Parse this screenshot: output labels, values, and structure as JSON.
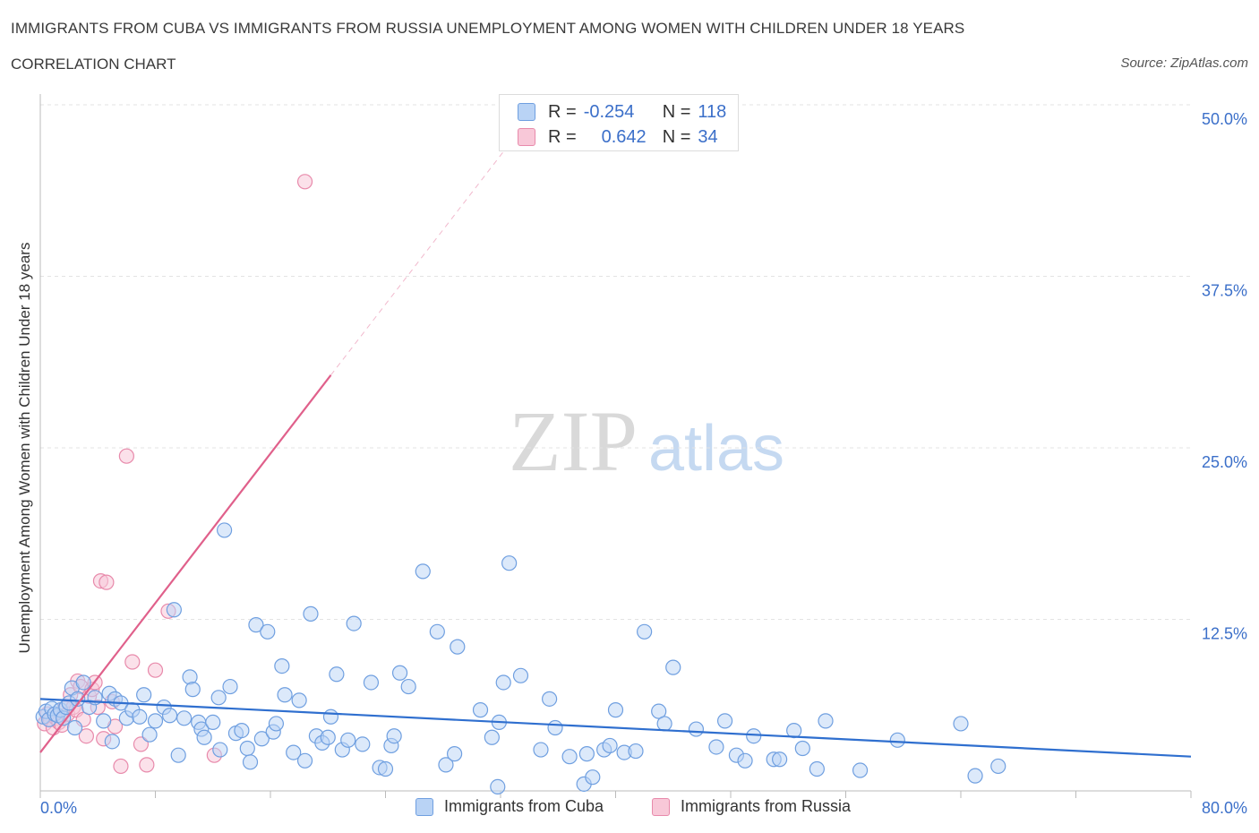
{
  "header": {
    "title": "IMMIGRANTS FROM CUBA VS IMMIGRANTS FROM RUSSIA UNEMPLOYMENT AMONG WOMEN WITH CHILDREN UNDER 18 YEARS",
    "subtitle": "CORRELATION CHART",
    "source": "Source: ZipAtlas.com"
  },
  "legend_stats": {
    "cuba": {
      "r_label": "R =",
      "r_value": "-0.254",
      "n_label": "N =",
      "n_value": "118"
    },
    "russia": {
      "r_label": "R =",
      "r_value": "0.642",
      "n_label": "N =",
      "n_value": "34"
    }
  },
  "colors": {
    "cuba": "#6f9fe0",
    "cuba_fill": "#b9d3f5",
    "cuba_line": "#2f6fcf",
    "russia": "#e88aab",
    "russia_fill": "#f8c8d8",
    "russia_line": "#e0608b",
    "axis_text": "#3b6fc9",
    "grid": "#e3e3e3"
  },
  "watermark": {
    "zip": "ZIP",
    "atlas": "atlas"
  },
  "chart_data": {
    "type": "scatter",
    "title": "IMMIGRANTS FROM CUBA VS IMMIGRANTS FROM RUSSIA UNEMPLOYMENT AMONG WOMEN WITH CHILDREN UNDER 18 YEARS",
    "xlabel": "",
    "ylabel": "Unemployment Among Women with Children Under 18 years",
    "xlim": [
      0,
      80
    ],
    "ylim": [
      0,
      50
    ],
    "x_tick_labels": [
      "0.0%",
      "80.0%"
    ],
    "y_ticks": [
      12.5,
      25,
      37.5,
      50
    ],
    "y_tick_labels": [
      "12.5%",
      "25.0%",
      "37.5%",
      "50.0%"
    ],
    "grid": true,
    "legend_position": "bottom",
    "series": [
      {
        "name": "Immigrants from Cuba",
        "points": [
          [
            0.2,
            5.4
          ],
          [
            0.4,
            5.8
          ],
          [
            0.6,
            5.2
          ],
          [
            0.8,
            6.0
          ],
          [
            1.0,
            5.6
          ],
          [
            1.2,
            5.5
          ],
          [
            1.4,
            5.9
          ],
          [
            1.6,
            5.3
          ],
          [
            1.8,
            6.1
          ],
          [
            2.0,
            6.4
          ],
          [
            2.2,
            7.5
          ],
          [
            2.4,
            4.6
          ],
          [
            2.6,
            6.7
          ],
          [
            3.0,
            7.9
          ],
          [
            3.4,
            6.1
          ],
          [
            3.8,
            6.8
          ],
          [
            4.4,
            5.1
          ],
          [
            4.8,
            7.1
          ],
          [
            5.0,
            3.6
          ],
          [
            5.2,
            6.7
          ],
          [
            5.6,
            6.4
          ],
          [
            6.0,
            5.3
          ],
          [
            6.4,
            5.9
          ],
          [
            6.9,
            5.4
          ],
          [
            7.2,
            7.0
          ],
          [
            7.6,
            4.1
          ],
          [
            8.0,
            5.1
          ],
          [
            8.6,
            6.1
          ],
          [
            9.0,
            5.5
          ],
          [
            9.3,
            13.2
          ],
          [
            9.6,
            2.6
          ],
          [
            10.0,
            5.3
          ],
          [
            10.4,
            8.3
          ],
          [
            10.6,
            7.4
          ],
          [
            11.0,
            5.0
          ],
          [
            11.2,
            4.5
          ],
          [
            11.4,
            3.9
          ],
          [
            12.0,
            5.0
          ],
          [
            12.5,
            3.0
          ],
          [
            12.4,
            6.8
          ],
          [
            12.8,
            19.0
          ],
          [
            13.2,
            7.6
          ],
          [
            13.6,
            4.2
          ],
          [
            14.0,
            4.4
          ],
          [
            14.4,
            3.1
          ],
          [
            14.6,
            2.1
          ],
          [
            15.0,
            12.1
          ],
          [
            15.4,
            3.8
          ],
          [
            15.8,
            11.6
          ],
          [
            16.2,
            4.3
          ],
          [
            16.4,
            4.9
          ],
          [
            16.8,
            9.1
          ],
          [
            17.0,
            7.0
          ],
          [
            17.6,
            2.8
          ],
          [
            18.0,
            6.6
          ],
          [
            18.4,
            2.2
          ],
          [
            18.8,
            12.9
          ],
          [
            19.2,
            4.0
          ],
          [
            19.6,
            3.5
          ],
          [
            20.0,
            3.9
          ],
          [
            20.2,
            5.4
          ],
          [
            20.6,
            8.5
          ],
          [
            21.0,
            3.0
          ],
          [
            21.4,
            3.7
          ],
          [
            21.8,
            12.2
          ],
          [
            22.4,
            3.4
          ],
          [
            23.0,
            7.9
          ],
          [
            23.6,
            1.7
          ],
          [
            24.0,
            1.6
          ],
          [
            24.4,
            3.3
          ],
          [
            24.6,
            4.0
          ],
          [
            25.0,
            8.6
          ],
          [
            25.6,
            7.6
          ],
          [
            26.6,
            16.0
          ],
          [
            27.6,
            11.6
          ],
          [
            28.2,
            1.9
          ],
          [
            28.8,
            2.7
          ],
          [
            29.0,
            10.5
          ],
          [
            30.6,
            5.9
          ],
          [
            31.4,
            3.9
          ],
          [
            31.8,
            0.3
          ],
          [
            31.9,
            5.0
          ],
          [
            32.2,
            7.9
          ],
          [
            32.6,
            16.6
          ],
          [
            33.4,
            8.4
          ],
          [
            34.8,
            3.0
          ],
          [
            35.4,
            6.7
          ],
          [
            35.8,
            4.6
          ],
          [
            36.8,
            2.5
          ],
          [
            37.8,
            0.5
          ],
          [
            38.0,
            2.7
          ],
          [
            38.4,
            1.0
          ],
          [
            39.2,
            3.0
          ],
          [
            39.6,
            3.3
          ],
          [
            40.0,
            5.9
          ],
          [
            40.6,
            2.8
          ],
          [
            41.4,
            2.9
          ],
          [
            42.0,
            11.6
          ],
          [
            43.0,
            5.8
          ],
          [
            43.4,
            4.9
          ],
          [
            44.0,
            9.0
          ],
          [
            45.6,
            4.5
          ],
          [
            47.0,
            3.2
          ],
          [
            47.6,
            5.1
          ],
          [
            48.4,
            2.6
          ],
          [
            49.0,
            2.2
          ],
          [
            49.6,
            4.0
          ],
          [
            51.0,
            2.3
          ],
          [
            51.4,
            2.3
          ],
          [
            52.4,
            4.4
          ],
          [
            53.0,
            3.1
          ],
          [
            54.0,
            1.6
          ],
          [
            54.6,
            5.1
          ],
          [
            57.0,
            1.5
          ],
          [
            59.6,
            3.7
          ],
          [
            64.0,
            4.9
          ],
          [
            65.0,
            1.1
          ],
          [
            66.6,
            1.8
          ]
        ],
        "trend": {
          "x": [
            0,
            80
          ],
          "y": [
            6.7,
            2.5
          ]
        }
      },
      {
        "name": "Immigrants from Russia",
        "points": [
          [
            0.3,
            4.9
          ],
          [
            0.5,
            5.6
          ],
          [
            0.7,
            5.2
          ],
          [
            0.9,
            4.6
          ],
          [
            1.1,
            5.3
          ],
          [
            1.3,
            5.0
          ],
          [
            1.5,
            4.8
          ],
          [
            1.7,
            6.0
          ],
          [
            1.9,
            5.6
          ],
          [
            2.1,
            7.0
          ],
          [
            2.3,
            6.1
          ],
          [
            2.5,
            5.9
          ],
          [
            2.6,
            8.0
          ],
          [
            2.8,
            7.6
          ],
          [
            3.0,
            5.2
          ],
          [
            3.2,
            4.0
          ],
          [
            3.4,
            6.9
          ],
          [
            3.6,
            7.4
          ],
          [
            3.8,
            7.9
          ],
          [
            4.0,
            6.1
          ],
          [
            4.2,
            15.3
          ],
          [
            4.4,
            3.8
          ],
          [
            4.6,
            15.2
          ],
          [
            5.0,
            6.5
          ],
          [
            5.2,
            4.7
          ],
          [
            5.6,
            1.8
          ],
          [
            6.0,
            24.4
          ],
          [
            6.4,
            9.4
          ],
          [
            7.0,
            3.4
          ],
          [
            7.4,
            1.9
          ],
          [
            8.0,
            8.8
          ],
          [
            8.9,
            13.1
          ],
          [
            12.1,
            2.6
          ],
          [
            18.4,
            44.4
          ]
        ],
        "trend": {
          "x": [
            0,
            20.2
          ],
          "y": [
            2.8,
            30.3
          ]
        },
        "trend_extension": {
          "x": [
            20.2,
            32.8
          ],
          "y": [
            30.3,
            47.4
          ]
        }
      }
    ]
  },
  "legend_bottom": {
    "cuba": "Immigrants from Cuba",
    "russia": "Immigrants from Russia"
  }
}
